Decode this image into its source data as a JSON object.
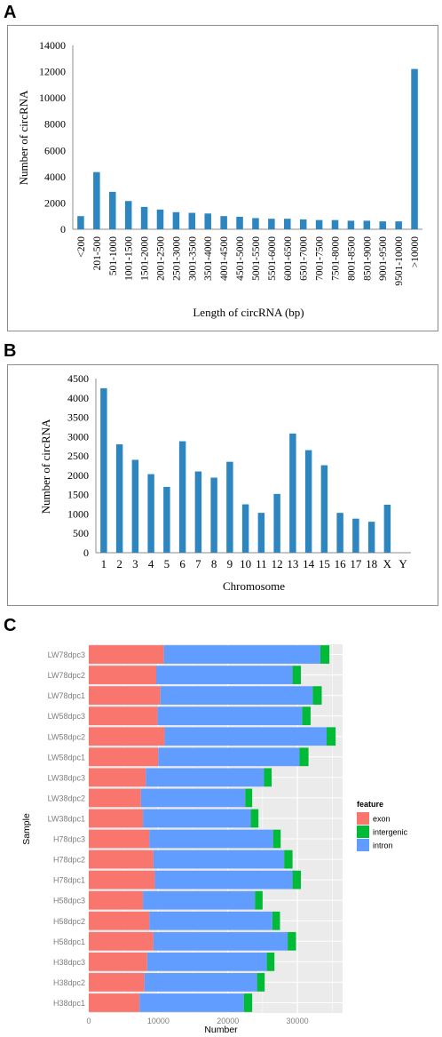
{
  "panels": {
    "a": "A",
    "b": "B",
    "c": "C"
  },
  "chart_data": [
    {
      "type": "bar",
      "panel": "A",
      "xlabel": "Length of circRNA (bp)",
      "ylabel": "Number of circRNA",
      "ylim": [
        0,
        14000
      ],
      "yticks": [
        "0",
        "2000",
        "4000",
        "6000",
        "8000",
        "10000",
        "12000",
        "14000"
      ],
      "categories": [
        "<200",
        "201-500",
        "501-1000",
        "1001-1500",
        "1501-2000",
        "2001-2500",
        "2501-3000",
        "3001-3500",
        "3501-4000",
        "4001-4500",
        "4501-5000",
        "5001-5500",
        "5501-6000",
        "6001-6500",
        "6501-7000",
        "7001-7500",
        "7501-8000",
        "8001-8500",
        "8501-9000",
        "9001-9500",
        "9501-10000",
        ">10000"
      ],
      "values": [
        1000,
        4350,
        2850,
        2150,
        1700,
        1500,
        1300,
        1250,
        1200,
        1000,
        950,
        850,
        800,
        800,
        750,
        700,
        700,
        650,
        650,
        600,
        600,
        12200
      ],
      "bar_color": "#2e86c1",
      "grid": false
    },
    {
      "type": "bar",
      "panel": "B",
      "xlabel": "Chromosome",
      "ylabel": "Number of circRNA",
      "ylim": [
        0,
        4500
      ],
      "yticks": [
        "0",
        "500",
        "1000",
        "1500",
        "2000",
        "2500",
        "3000",
        "3500",
        "4000",
        "4500"
      ],
      "categories": [
        "1",
        "2",
        "3",
        "4",
        "5",
        "6",
        "7",
        "8",
        "9",
        "10",
        "11",
        "12",
        "13",
        "14",
        "15",
        "16",
        "17",
        "18",
        "X",
        "Y"
      ],
      "values": [
        4250,
        2800,
        2400,
        2030,
        1700,
        2880,
        2100,
        1940,
        2350,
        1250,
        1030,
        1520,
        3080,
        2650,
        2260,
        1030,
        880,
        800,
        1240,
        0
      ],
      "bar_color": "#2e86c1",
      "grid": false
    },
    {
      "type": "bar",
      "orientation": "horizontal",
      "stacked": true,
      "panel": "C",
      "xlabel": "Number",
      "ylabel": "Sample",
      "xlim": [
        0,
        36500
      ],
      "xticks": [
        0,
        10000,
        20000,
        30000
      ],
      "categories": [
        "LW78dpc3",
        "LW78dpc2",
        "LW78dpc1",
        "LW58dpc3",
        "LW58dpc2",
        "LW58dpc1",
        "LW38dpc3",
        "LW38dpc2",
        "LW38dpc1",
        "H78dpc3",
        "H78dpc2",
        "H78dpc1",
        "H58dpc3",
        "H58dpc2",
        "H58dpc1",
        "H38dpc3",
        "H38dpc2",
        "H38dpc1"
      ],
      "legend_title": "feature",
      "legend_position": "right",
      "series": [
        {
          "name": "exon",
          "color": "#f8766d",
          "values": [
            10800,
            9700,
            10300,
            9900,
            10900,
            10000,
            8200,
            7500,
            7800,
            8700,
            9300,
            9500,
            7800,
            8700,
            9300,
            8400,
            8000,
            7300
          ]
        },
        {
          "name": "intergenic",
          "color": "#00ba38",
          "values": [
            1300,
            1200,
            1300,
            1200,
            1300,
            1300,
            1100,
            1000,
            1100,
            1100,
            1200,
            1200,
            1100,
            1100,
            1200,
            1100,
            1100,
            1200
          ]
        },
        {
          "name": "intron",
          "color": "#619cff",
          "values": [
            22500,
            19600,
            21900,
            20800,
            23300,
            20300,
            17000,
            15000,
            15500,
            17800,
            18800,
            19800,
            16100,
            17700,
            19300,
            17200,
            16200,
            15000
          ]
        }
      ]
    }
  ]
}
